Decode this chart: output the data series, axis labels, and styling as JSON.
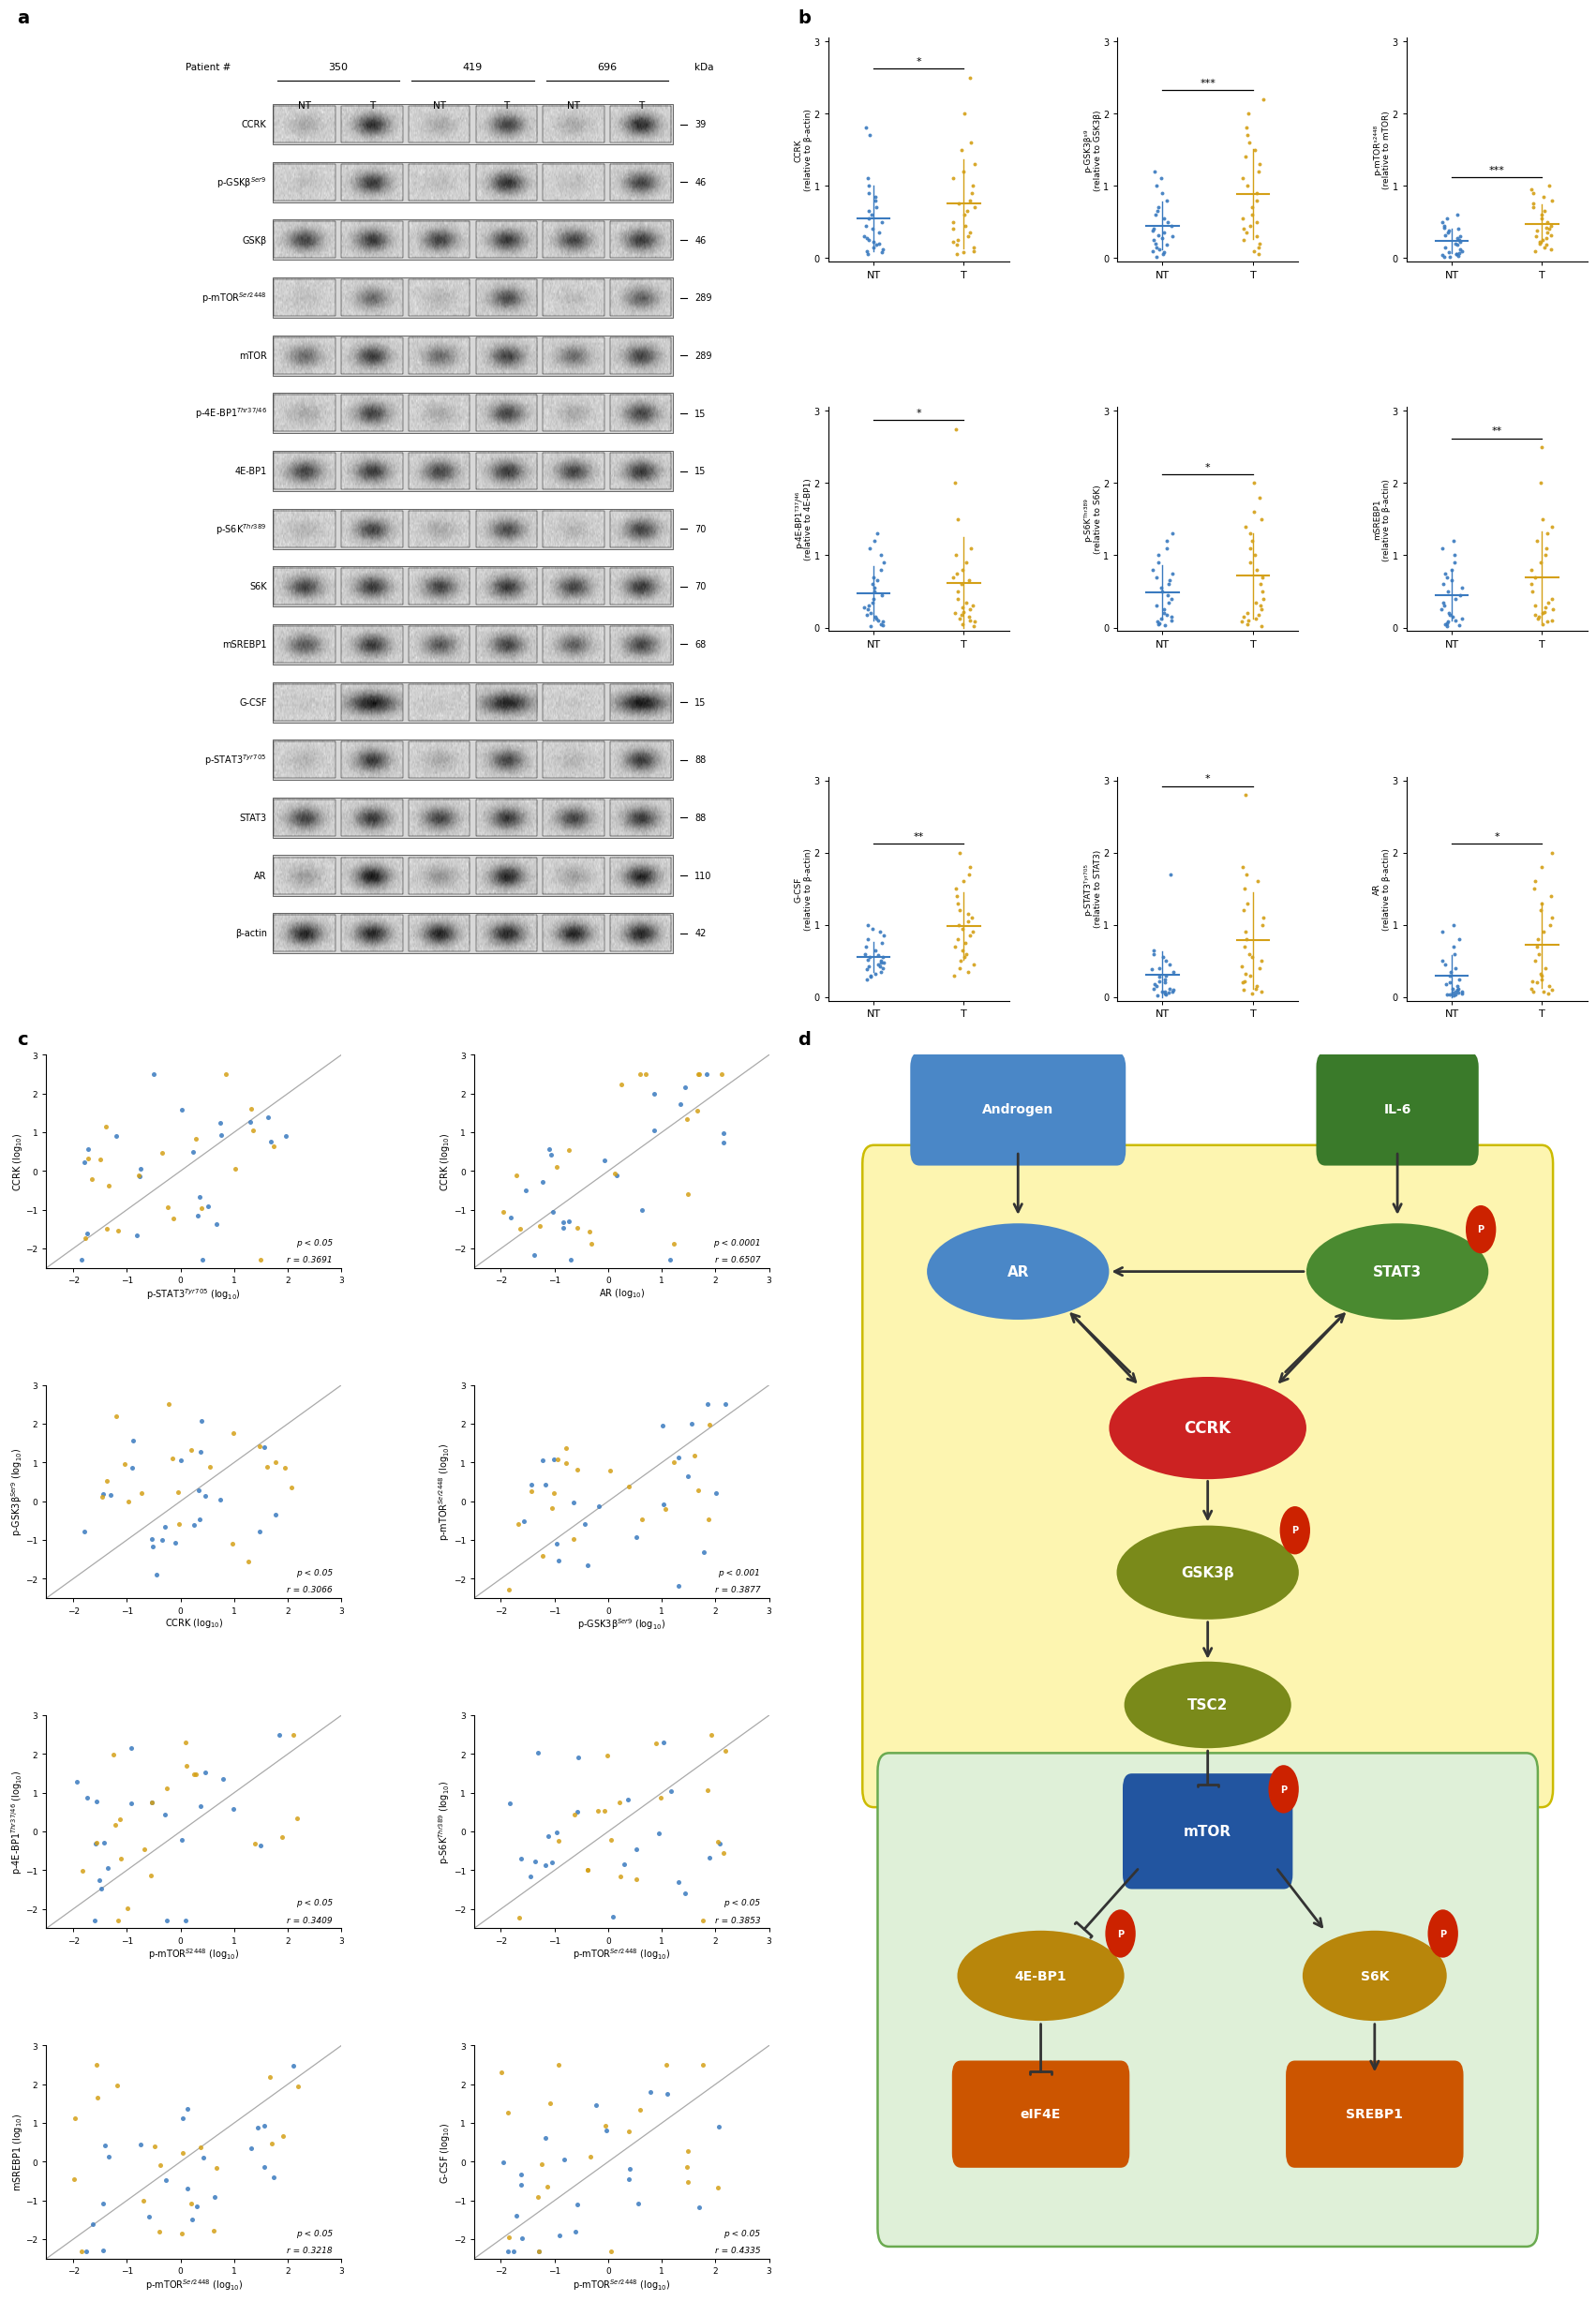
{
  "panel_b": {
    "plots": [
      {
        "ylabel": "CCRK\n(relative to β-actin)",
        "sig": "*",
        "NT_pts": [
          0.05,
          0.08,
          0.1,
          0.12,
          0.15,
          0.18,
          0.2,
          0.22,
          0.25,
          0.28,
          0.3,
          0.35,
          0.4,
          0.45,
          0.5,
          0.55,
          0.6,
          0.65,
          0.7,
          0.8,
          0.85,
          0.9,
          1.0,
          1.1,
          1.7,
          1.8
        ],
        "T_pts": [
          0.05,
          0.1,
          0.15,
          0.18,
          0.22,
          0.25,
          0.3,
          0.35,
          0.4,
          0.45,
          0.5,
          0.6,
          0.65,
          0.7,
          0.75,
          0.8,
          0.9,
          1.0,
          1.1,
          1.2,
          1.3,
          1.5,
          1.6,
          2.0,
          2.5,
          0.08
        ]
      },
      {
        "ylabel": "p-GSK3βˢ⁹\n(relative to GSK3β)",
        "sig": "***",
        "NT_pts": [
          0.02,
          0.05,
          0.08,
          0.1,
          0.12,
          0.15,
          0.18,
          0.2,
          0.25,
          0.3,
          0.35,
          0.4,
          0.5,
          0.6,
          0.65,
          0.7,
          0.8,
          0.9,
          1.0,
          1.1,
          1.2,
          0.45,
          0.55,
          0.28,
          0.32,
          0.38
        ],
        "T_pts": [
          0.05,
          0.1,
          0.15,
          0.2,
          0.25,
          0.3,
          0.4,
          0.5,
          0.6,
          0.7,
          0.8,
          0.9,
          1.0,
          1.1,
          1.2,
          1.3,
          1.4,
          1.5,
          1.6,
          1.7,
          1.8,
          2.0,
          2.2,
          0.35,
          0.45,
          0.55
        ]
      },
      {
        "ylabel": "p-mTORˢ²⁴⁴⁸\n(relative to mTOR)",
        "sig": "***",
        "NT_pts": [
          0.02,
          0.03,
          0.05,
          0.07,
          0.08,
          0.1,
          0.12,
          0.15,
          0.18,
          0.2,
          0.22,
          0.25,
          0.28,
          0.3,
          0.32,
          0.35,
          0.38,
          0.4,
          0.42,
          0.45,
          0.5,
          0.55,
          0.6,
          0.02,
          0.04,
          0.06
        ],
        "T_pts": [
          0.1,
          0.15,
          0.2,
          0.25,
          0.3,
          0.35,
          0.4,
          0.45,
          0.5,
          0.55,
          0.6,
          0.65,
          0.7,
          0.75,
          0.8,
          0.85,
          0.9,
          0.95,
          1.0,
          0.12,
          0.18,
          0.22,
          0.28,
          0.32,
          0.38,
          0.42
        ]
      },
      {
        "ylabel": "p-4E-BP1ᵀ³⁷/⁴⁶\n(relative to 4E-BP1)",
        "sig": "*",
        "NT_pts": [
          0.02,
          0.05,
          0.08,
          0.1,
          0.12,
          0.15,
          0.18,
          0.2,
          0.25,
          0.28,
          0.3,
          0.35,
          0.4,
          0.45,
          0.5,
          0.55,
          0.6,
          0.65,
          0.7,
          0.8,
          0.9,
          1.0,
          1.1,
          1.2,
          1.3,
          0.03
        ],
        "T_pts": [
          0.02,
          0.05,
          0.1,
          0.15,
          0.2,
          0.25,
          0.3,
          0.35,
          0.4,
          0.5,
          0.6,
          0.65,
          0.7,
          0.75,
          0.8,
          0.9,
          1.0,
          1.1,
          1.5,
          2.0,
          2.75,
          0.08,
          0.12,
          0.18,
          0.22,
          0.28
        ]
      },
      {
        "ylabel": "p-S6Kᵀʰʳ³⁸⁹\n(relative to S6K)",
        "sig": "*",
        "NT_pts": [
          0.05,
          0.08,
          0.1,
          0.15,
          0.18,
          0.2,
          0.25,
          0.3,
          0.35,
          0.4,
          0.45,
          0.5,
          0.55,
          0.6,
          0.65,
          0.7,
          0.75,
          0.8,
          0.9,
          1.0,
          1.1,
          1.2,
          1.3,
          0.03,
          0.06,
          0.12
        ],
        "T_pts": [
          0.02,
          0.05,
          0.1,
          0.15,
          0.2,
          0.25,
          0.3,
          0.35,
          0.4,
          0.5,
          0.6,
          0.7,
          0.8,
          0.9,
          1.0,
          1.1,
          1.2,
          1.3,
          1.4,
          1.5,
          1.6,
          1.8,
          2.0,
          0.08,
          0.12,
          0.18
        ]
      },
      {
        "ylabel": "mSREBP1\n(relative to β-actin)",
        "sig": "**",
        "NT_pts": [
          0.02,
          0.05,
          0.08,
          0.1,
          0.15,
          0.18,
          0.2,
          0.25,
          0.3,
          0.35,
          0.4,
          0.45,
          0.5,
          0.55,
          0.6,
          0.65,
          0.7,
          0.75,
          0.8,
          0.9,
          1.0,
          1.1,
          1.2,
          0.03,
          0.06,
          0.12
        ],
        "T_pts": [
          0.05,
          0.1,
          0.15,
          0.2,
          0.25,
          0.3,
          0.4,
          0.5,
          0.6,
          0.7,
          0.8,
          0.9,
          1.0,
          1.1,
          1.2,
          1.3,
          1.4,
          1.5,
          2.0,
          2.5,
          0.08,
          0.12,
          0.18,
          0.22,
          0.28,
          0.35
        ]
      },
      {
        "ylabel": "G-CSF\n(relative to β-actin)",
        "sig": "**",
        "NT_pts": [
          0.25,
          0.3,
          0.35,
          0.38,
          0.4,
          0.42,
          0.45,
          0.48,
          0.5,
          0.52,
          0.55,
          0.58,
          0.6,
          0.65,
          0.7,
          0.75,
          0.8,
          0.85,
          0.9,
          0.95,
          1.0,
          0.28,
          0.32,
          0.42,
          0.48,
          0.55
        ],
        "T_pts": [
          0.3,
          0.4,
          0.5,
          0.6,
          0.7,
          0.8,
          0.9,
          1.0,
          1.1,
          1.2,
          1.3,
          1.4,
          1.5,
          1.6,
          1.7,
          1.8,
          2.0,
          0.35,
          0.45,
          0.55,
          0.65,
          0.75,
          0.85,
          0.95,
          1.05,
          1.15
        ]
      },
      {
        "ylabel": "p-STAT3ᵀʸʳ⁷⁰⁵\n(relative to STAT3)",
        "sig": "*",
        "NT_pts": [
          0.02,
          0.03,
          0.05,
          0.06,
          0.07,
          0.08,
          0.1,
          0.12,
          0.15,
          0.18,
          0.2,
          0.25,
          0.3,
          0.35,
          0.4,
          0.45,
          0.5,
          0.55,
          0.6,
          0.65,
          1.7,
          0.08,
          0.12,
          0.22,
          0.28,
          0.38
        ],
        "T_pts": [
          0.05,
          0.1,
          0.15,
          0.2,
          0.3,
          0.4,
          0.5,
          0.6,
          0.7,
          0.8,
          0.9,
          1.0,
          1.1,
          1.2,
          1.3,
          1.5,
          1.6,
          1.7,
          1.8,
          2.8,
          0.08,
          0.12,
          0.22,
          0.32,
          0.42,
          0.55
        ]
      },
      {
        "ylabel": "AR\n(relative to β-actin)",
        "sig": "*",
        "NT_pts": [
          0.02,
          0.03,
          0.04,
          0.05,
          0.06,
          0.07,
          0.08,
          0.1,
          0.12,
          0.15,
          0.18,
          0.2,
          0.25,
          0.3,
          0.35,
          0.4,
          0.45,
          0.5,
          0.6,
          0.7,
          0.8,
          0.9,
          1.0,
          0.03,
          0.06,
          0.12
        ],
        "T_pts": [
          0.05,
          0.08,
          0.1,
          0.15,
          0.2,
          0.25,
          0.3,
          0.4,
          0.5,
          0.6,
          0.7,
          0.8,
          0.9,
          1.0,
          1.1,
          1.2,
          1.3,
          1.4,
          1.5,
          1.6,
          1.8,
          2.0,
          0.08,
          0.12,
          0.22,
          0.32
        ]
      }
    ]
  },
  "panel_c": {
    "plots": [
      {
        "xlabel": "p-STAT3$^{Tyr705}$ (log$_{10}$)",
        "ylabel": "CCRK (log$_{10}$)",
        "p_val": "p < 0.05",
        "r_val": "r = 0.3691"
      },
      {
        "xlabel": "AR (log$_{10}$)",
        "ylabel": "CCRK (log$_{10}$)",
        "p_val": "p < 0.0001",
        "r_val": "r = 0.6507"
      },
      {
        "xlabel": "CCRK (log$_{10}$)",
        "ylabel": "p-GSK3β$^{Ser9}$ (log$_{10}$)",
        "p_val": "p < 0.05",
        "r_val": "r = 0.3066"
      },
      {
        "xlabel": "p-GSK3β$^{Ser9}$ (log$_{10}$)",
        "ylabel": "p-mTOR$^{Ser2448}$ (log$_{10}$)",
        "p_val": "p < 0.001",
        "r_val": "r = 0.3877"
      },
      {
        "xlabel": "p-mTOR$^{S2448}$ (log$_{10}$)",
        "ylabel": "p-4E-BP1$^{Thr37/46}$ (log$_{10}$)",
        "p_val": "p < 0.05",
        "r_val": "r = 0.3409"
      },
      {
        "xlabel": "p-mTOR$^{Ser2448}$ (log$_{10}$)",
        "ylabel": "p-S6K$^{Thr389}$ (log$_{10}$)",
        "p_val": "p < 0.05",
        "r_val": "r = 0.3853"
      },
      {
        "xlabel": "p-mTOR$^{Ser2448}$ (log$_{10}$)",
        "ylabel": "mSREBP1 (log$_{10}$)",
        "p_val": "p < 0.05",
        "r_val": "r = 0.3218"
      },
      {
        "xlabel": "p-mTOR$^{Ser2448}$ (log$_{10}$)",
        "ylabel": "G-CSF (log$_{10}$)",
        "p_val": "p < 0.05",
        "r_val": "r = 0.4335"
      }
    ]
  },
  "colors": {
    "blue": "#3a7abf",
    "orange": "#d4a017",
    "dark_blue": "#1a4a7a"
  },
  "wb_labels": [
    [
      "CCRK",
      "39",
      [
        0.2,
        0.8,
        0.2,
        0.7,
        0.2,
        0.8
      ]
    ],
    [
      "p-GSKβ$^{Ser9}$",
      "46",
      [
        0.1,
        0.75,
        0.1,
        0.8,
        0.1,
        0.7
      ]
    ],
    [
      "GSKβ",
      "46",
      [
        0.7,
        0.75,
        0.7,
        0.75,
        0.7,
        0.75
      ]
    ],
    [
      "p-mTOR$^{Ser2448}$",
      "289",
      [
        0.1,
        0.5,
        0.15,
        0.65,
        0.1,
        0.55
      ]
    ],
    [
      "mTOR",
      "289",
      [
        0.5,
        0.75,
        0.5,
        0.7,
        0.5,
        0.7
      ]
    ],
    [
      "p-4E-BP1$^{Thr37/46}$",
      "15",
      [
        0.2,
        0.7,
        0.2,
        0.7,
        0.2,
        0.7
      ]
    ],
    [
      "4E-BP1",
      "15",
      [
        0.7,
        0.75,
        0.7,
        0.75,
        0.7,
        0.75
      ]
    ],
    [
      "p-S6K$^{Thr389}$",
      "70",
      [
        0.15,
        0.7,
        0.2,
        0.65,
        0.15,
        0.7
      ]
    ],
    [
      "S6K",
      "70",
      [
        0.7,
        0.75,
        0.7,
        0.75,
        0.7,
        0.75
      ]
    ],
    [
      "mSREBP1",
      "68",
      [
        0.6,
        0.75,
        0.6,
        0.7,
        0.55,
        0.7
      ]
    ],
    [
      "G-CSF",
      "15",
      [
        0.05,
        0.9,
        0.05,
        0.85,
        0.05,
        0.9
      ]
    ],
    [
      "p-STAT3$^{Tyr705}$",
      "88",
      [
        0.15,
        0.75,
        0.2,
        0.7,
        0.15,
        0.75
      ]
    ],
    [
      "STAT3",
      "88",
      [
        0.7,
        0.75,
        0.7,
        0.75,
        0.7,
        0.75
      ]
    ],
    [
      "AR",
      "110",
      [
        0.25,
        0.9,
        0.3,
        0.85,
        0.25,
        0.85
      ]
    ],
    [
      "β-actin",
      "42",
      [
        0.85,
        0.85,
        0.85,
        0.85,
        0.85,
        0.85
      ]
    ]
  ]
}
